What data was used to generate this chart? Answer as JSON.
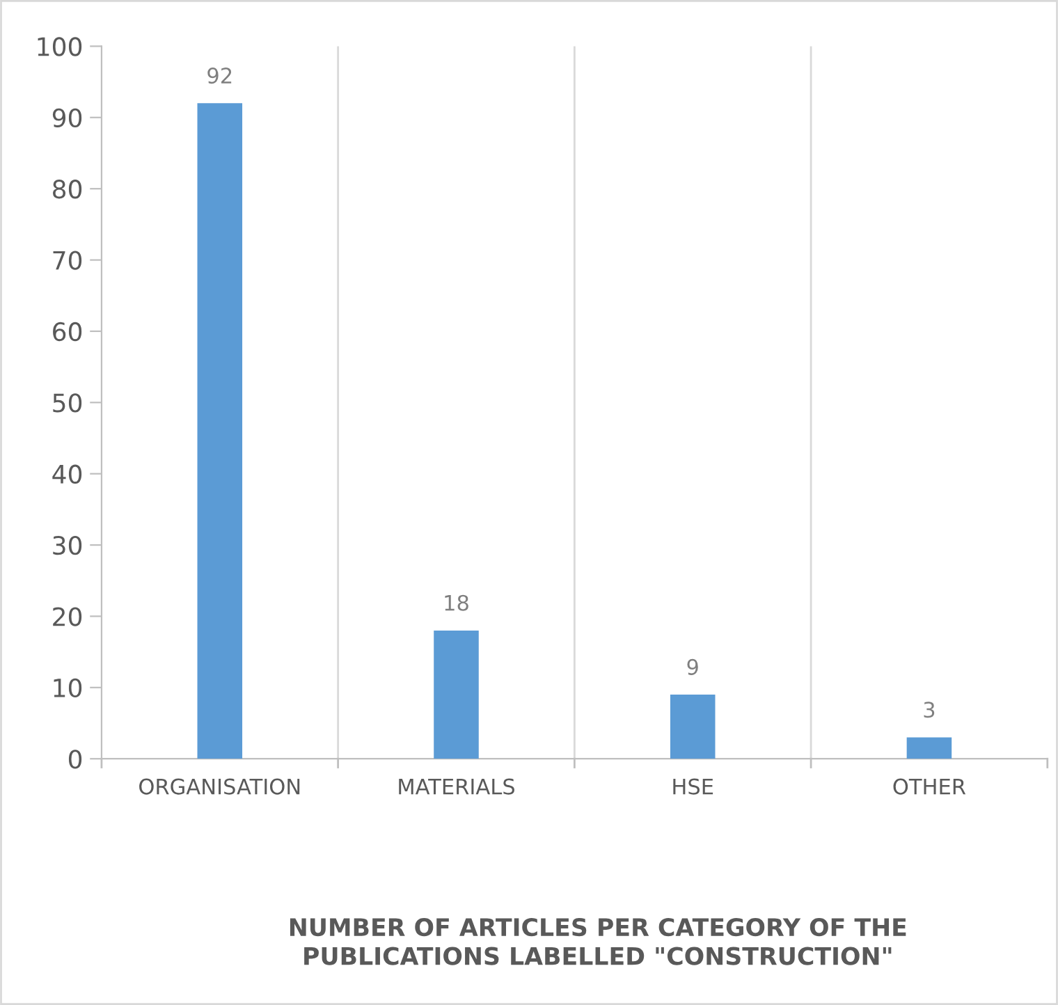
{
  "chart_data": {
    "type": "bar",
    "title": "NUMBER OF ARTICLES PER CATEGORY OF THE\nPUBLICATIONS LABELLED \"CONSTRUCTION\"",
    "categories": [
      "ORGANISATION",
      "MATERIALS",
      "HSE",
      "OTHER"
    ],
    "values": [
      92,
      18,
      9,
      3
    ],
    "color": "#5b9bd5",
    "ylim": [
      0,
      100
    ],
    "yticks": [
      0,
      10,
      20,
      30,
      40,
      50,
      60,
      70,
      80,
      90,
      100
    ],
    "grid": "x",
    "data_labels": true,
    "legend": false
  }
}
